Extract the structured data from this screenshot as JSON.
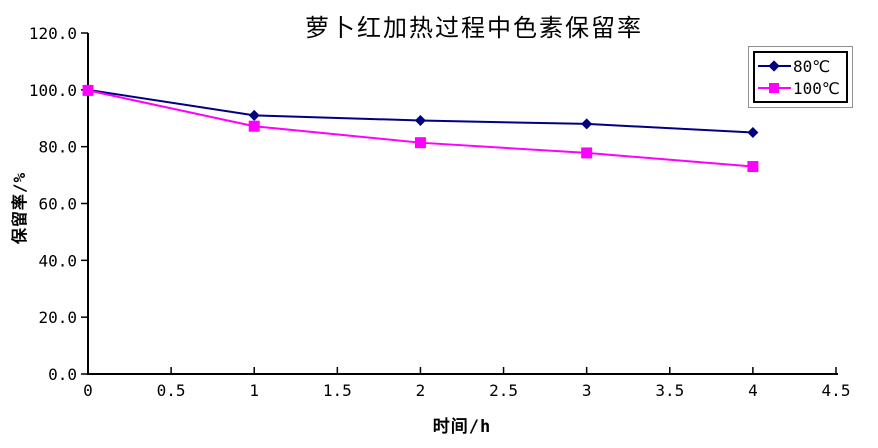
{
  "title": "萝卜红加热过程中色素保留率",
  "axes": {
    "x_title": "时间/h",
    "y_title": "保留率/%"
  },
  "colors": {
    "series_80c": "#000080",
    "series_100c": "#FF00FF",
    "axis": "#000000",
    "legend_border": "#000000",
    "legend_outer_border": "#909090",
    "background": "#FFFFFF"
  },
  "chart_data": {
    "type": "line",
    "title": "萝卜红加热过程中色素保留率",
    "xlabel": "时间/h",
    "ylabel": "保留率/%",
    "x": [
      0,
      1,
      2,
      3,
      4
    ],
    "series": [
      {
        "name": "80℃",
        "color": "#000080",
        "marker": "diamond",
        "values": [
          100.0,
          91.0,
          89.2,
          88.0,
          85.0
        ]
      },
      {
        "name": "100℃",
        "color": "#FF00FF",
        "marker": "square",
        "values": [
          99.8,
          87.2,
          81.4,
          77.8,
          73.0
        ]
      }
    ],
    "xlim": [
      0,
      4.5
    ],
    "ylim": [
      0,
      120
    ],
    "x_ticks": [
      0,
      0.5,
      1,
      1.5,
      2,
      2.5,
      3,
      3.5,
      4,
      4.5
    ],
    "x_tick_labels": [
      "0",
      "0.5",
      "1",
      "1.5",
      "2",
      "2.5",
      "3",
      "3.5",
      "4",
      "4.5"
    ],
    "y_ticks": [
      0,
      20,
      40,
      60,
      80,
      100,
      120
    ],
    "y_tick_labels": [
      "0.0",
      "20.0",
      "40.0",
      "60.0",
      "80.0",
      "100.0",
      "120.0"
    ],
    "grid": false,
    "legend_position": "top-right"
  },
  "legend": {
    "items": [
      {
        "label": "80℃"
      },
      {
        "label": "100℃"
      }
    ]
  }
}
